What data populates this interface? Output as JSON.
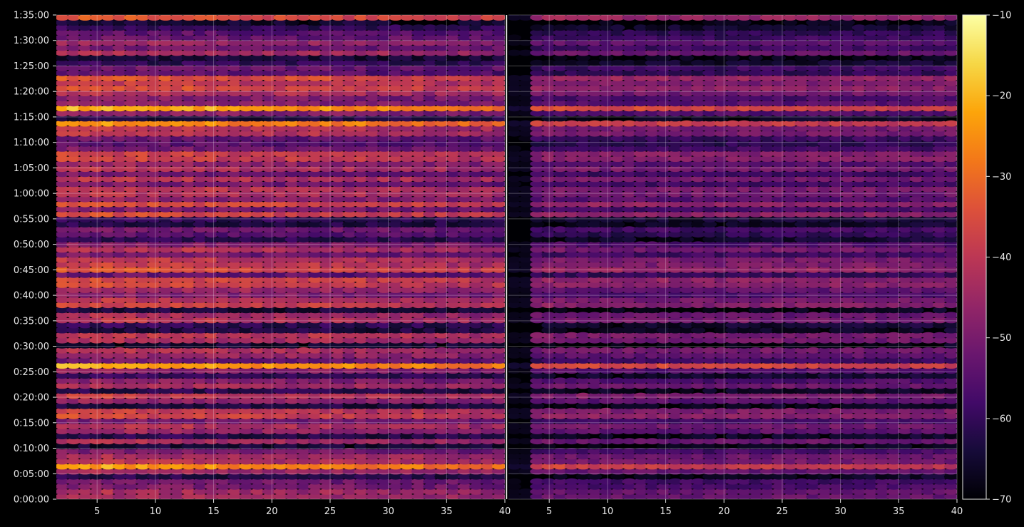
{
  "chart_data": {
    "type": "heatmap",
    "panels": [
      {
        "name": "",
        "xlim": [
          1.5,
          40
        ],
        "x_ticks": [
          "5",
          "10",
          "15",
          "20",
          "25",
          "30",
          "35",
          "40"
        ],
        "brightness": "high",
        "left_dark_columns": 0
      },
      {
        "name": "",
        "xlim": [
          1.5,
          40
        ],
        "x_ticks": [
          "5",
          "10",
          "15",
          "20",
          "25",
          "30",
          "35",
          "40"
        ],
        "brightness": "low",
        "left_dark_columns": 2
      }
    ],
    "y_ticks": [
      "0:00:00",
      "0:05:00",
      "0:10:00",
      "0:15:00",
      "0:20:00",
      "0:25:00",
      "0:30:00",
      "0:35:00",
      "0:40:00",
      "0:45:00",
      "0:50:00",
      "0:55:00",
      "1:00:00",
      "1:05:00",
      "1:10:00",
      "1:15:00",
      "1:20:00",
      "1:25:00",
      "1:30:00",
      "1:35:00"
    ],
    "y_range_minutes": [
      0,
      95
    ],
    "grid": true,
    "colorbar": {
      "colormap": "inferno",
      "range": [
        -70,
        -10
      ],
      "ticks": [
        "−70",
        "−60",
        "−50",
        "−40",
        "−30",
        "−20",
        "−10"
      ]
    }
  }
}
